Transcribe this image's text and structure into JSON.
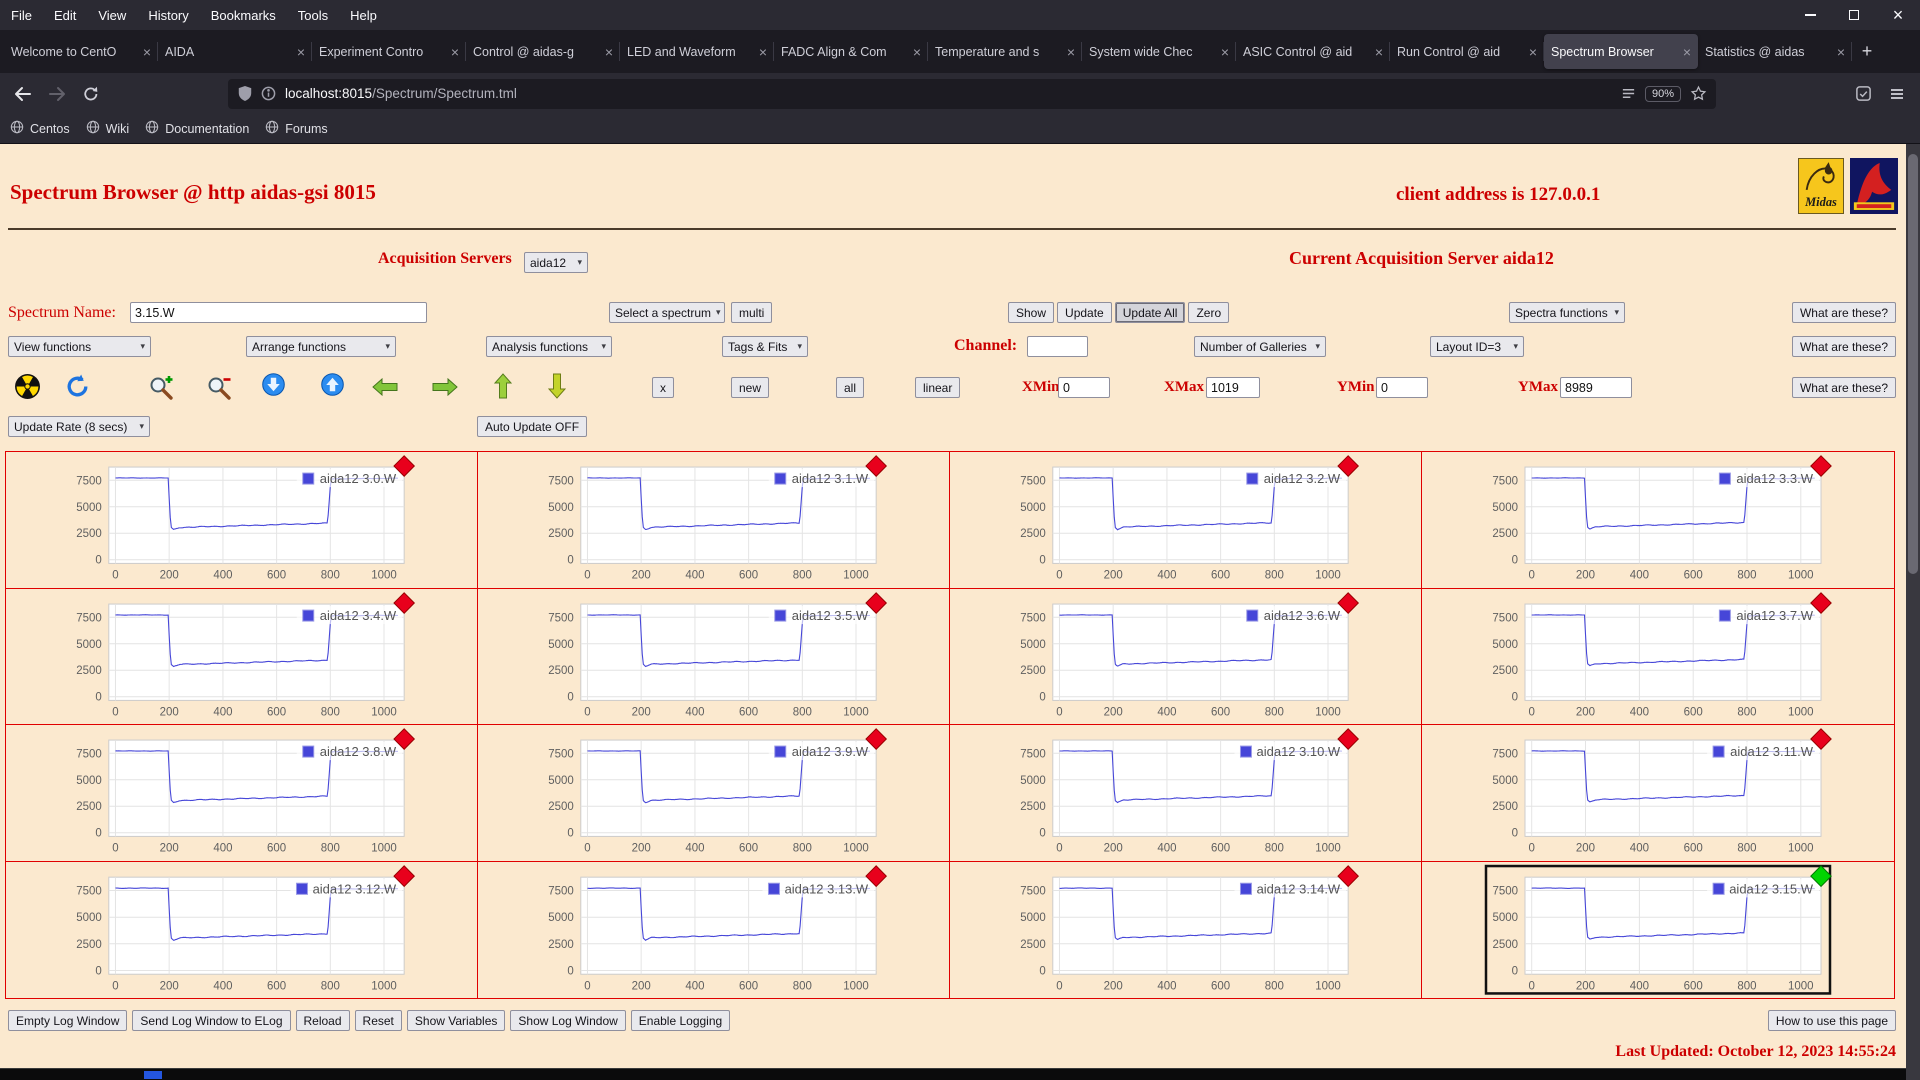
{
  "colors": {
    "accent_red": "#cc0000",
    "page_bg": "#fbe9cf",
    "grid_border": "#e00000",
    "plot_line": "#4646d8",
    "marker_red": "#e8001c",
    "marker_green": "#00d400"
  },
  "browser": {
    "menu_items": [
      "File",
      "Edit",
      "View",
      "History",
      "Bookmarks",
      "Tools",
      "Help"
    ],
    "tabs": [
      {
        "label": "Welcome to CentO"
      },
      {
        "label": "AIDA"
      },
      {
        "label": "Experiment Contro"
      },
      {
        "label": "Control @ aidas-g"
      },
      {
        "label": "LED and Waveform"
      },
      {
        "label": "FADC Align & Com"
      },
      {
        "label": "Temperature and s"
      },
      {
        "label": "System wide Chec"
      },
      {
        "label": "ASIC Control @ aid"
      },
      {
        "label": "Run Control @ aid"
      },
      {
        "label": "Spectrum Browser",
        "active": true
      },
      {
        "label": "Statistics @ aidas"
      }
    ],
    "new_tab": "+",
    "url_host": "localhost:8015",
    "url_path": "/Spectrum/Spectrum.tml",
    "zoom_level": "90%",
    "bookmarks": [
      "Centos",
      "Wiki",
      "Documentation",
      "Forums"
    ]
  },
  "logos": {
    "midas": "Midas"
  },
  "header": {
    "title": "Spectrum Browser @ http aidas-gsi 8015",
    "client_address": "client address is 127.0.0.1"
  },
  "controls": {
    "acquisition_servers_label": "Acquisition Servers",
    "acquisition_server_select": "aida12",
    "current_server_text": "Current Acquisition Server aida12",
    "spectrum_name_label": "Spectrum Name:",
    "spectrum_name_value": "3.15.W",
    "select_spectrum": "Select a spectrum",
    "multi_button": "multi",
    "show_button": "Show",
    "update_button": "Update",
    "update_all_button": "Update All",
    "zero_button": "Zero",
    "spectra_functions_select": "Spectra functions",
    "what_are_these_button": "What are these?",
    "view_functions_select": "View functions",
    "arrange_functions_select": "Arrange functions",
    "analysis_functions_select": "Analysis functions",
    "tags_fits_select": "Tags & Fits",
    "channel_label": "Channel:",
    "channel_value": "",
    "galleries_select": "Number of Galleries",
    "layout_select": "Layout ID=3",
    "x_button": "x",
    "new_button": "new",
    "all_button": "all",
    "linear_button": "linear",
    "xmin_label": "XMin",
    "xmin_value": "0",
    "xmax_label": "XMax",
    "xmax_value": "1019",
    "ymin_label": "YMin",
    "ymin_value": "0",
    "ymax_label": "YMax",
    "ymax_value": "8989",
    "update_rate_select": "Update Rate (8 secs)",
    "auto_update_button": "Auto Update OFF",
    "toolbar_icons": [
      "radiation",
      "refresh",
      "zoom-in",
      "zoom-out",
      "scroll-down",
      "scroll-up",
      "pan-left",
      "pan-right",
      "pan-up",
      "pan-down"
    ]
  },
  "footer": {
    "buttons": [
      "Empty Log Window",
      "Send Log Window to ELog",
      "Reload",
      "Reset",
      "Show Variables",
      "Show Log Window",
      "Enable Logging"
    ],
    "how_to": "How to use this page",
    "last_updated": "Last Updated: October 12, 2023 14:55:24"
  },
  "chart_data": {
    "type": "line",
    "title": "",
    "xlabel": "",
    "ylabel": "",
    "x_ticks": [
      0,
      200,
      400,
      600,
      800,
      1000
    ],
    "y_ticks": [
      0,
      2500,
      5000,
      7500
    ],
    "xlim": [
      0,
      1050
    ],
    "ylim": [
      0,
      8900
    ],
    "grid": true,
    "legend_position": "top-right",
    "line_color": "#4646d8",
    "shape_points": [
      [
        0,
        7720
      ],
      [
        196,
        7720
      ],
      [
        206,
        3100
      ],
      [
        216,
        2870
      ],
      [
        238,
        3080
      ],
      [
        790,
        3480
      ],
      [
        802,
        7640
      ],
      [
        1050,
        7690
      ]
    ],
    "plots": [
      {
        "label": "aida12 3.0.W",
        "marker": "red"
      },
      {
        "label": "aida12 3.1.W",
        "marker": "red"
      },
      {
        "label": "aida12 3.2.W",
        "marker": "red"
      },
      {
        "label": "aida12 3.3.W",
        "marker": "red"
      },
      {
        "label": "aida12 3.4.W",
        "marker": "red"
      },
      {
        "label": "aida12 3.5.W",
        "marker": "red"
      },
      {
        "label": "aida12 3.6.W",
        "marker": "red"
      },
      {
        "label": "aida12 3.7.W",
        "marker": "red"
      },
      {
        "label": "aida12 3.8.W",
        "marker": "red"
      },
      {
        "label": "aida12 3.9.W",
        "marker": "red"
      },
      {
        "label": "aida12 3.10.W",
        "marker": "red"
      },
      {
        "label": "aida12 3.11.W",
        "marker": "red"
      },
      {
        "label": "aida12 3.12.W",
        "marker": "red"
      },
      {
        "label": "aida12 3.13.W",
        "marker": "red"
      },
      {
        "label": "aida12 3.14.W",
        "marker": "red"
      },
      {
        "label": "aida12 3.15.W",
        "marker": "green",
        "selected": true
      }
    ]
  }
}
